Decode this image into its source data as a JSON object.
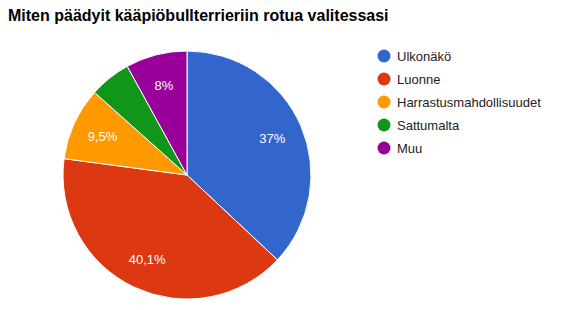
{
  "chart_data": {
    "type": "pie",
    "title": "Miten päädyit kääpiöbullterrieriin rotua valitessasi",
    "categories": [
      "Ulkonäkö",
      "Luonne",
      "Harrastusmahdollisuudet",
      "Sattumalta",
      "Muu"
    ],
    "values": [
      37,
      40.1,
      9.5,
      5.4,
      8
    ],
    "value_labels": [
      "37%",
      "40,1%",
      "9,5%",
      null,
      "8%"
    ],
    "colors": [
      "#3366cc",
      "#dc3912",
      "#ff9900",
      "#109618",
      "#990099"
    ],
    "legend": "right",
    "data_labels": true
  }
}
